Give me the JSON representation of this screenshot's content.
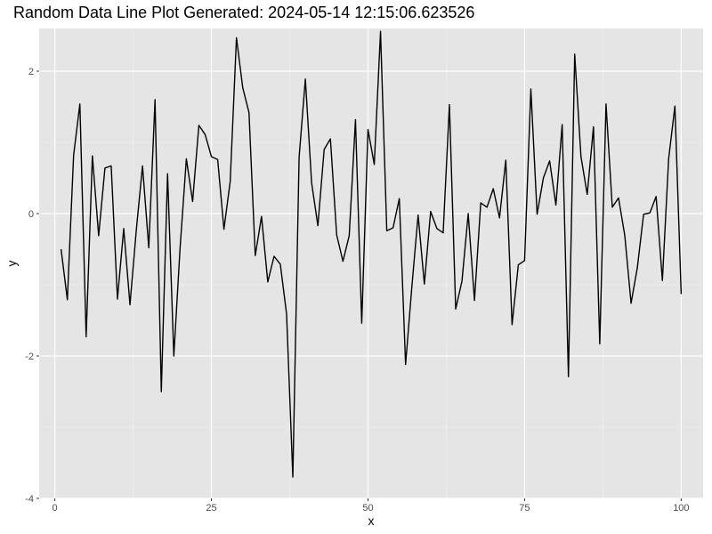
{
  "chart_data": {
    "type": "line",
    "title": "Random Data Line Plot Generated: 2024-05-14 12:15:06.623526",
    "xlabel": "x",
    "ylabel": "y",
    "xlim": [
      -2.5,
      103.5
    ],
    "ylim": [
      -4.0,
      2.6
    ],
    "x_ticks": [
      0,
      25,
      50,
      75,
      100
    ],
    "y_ticks": [
      -4,
      -2,
      0,
      2
    ],
    "x_tick_labels": [
      "0",
      "25",
      "50",
      "75",
      "100"
    ],
    "y_tick_labels": [
      "-4",
      "-2",
      "0",
      "2"
    ],
    "grid": true,
    "legend": "none",
    "colors": {
      "panel_background": "#e5e5e5",
      "grid_major": "#ffffff",
      "grid_minor": "#f2f2f2",
      "line": "#000000",
      "tick": "#333333"
    },
    "series": [
      {
        "x": [
          1,
          2,
          3,
          4,
          5,
          6,
          7,
          8,
          9,
          10,
          11,
          12,
          13,
          14,
          15,
          16,
          17,
          18,
          19,
          20,
          21,
          22,
          23,
          24,
          25,
          26,
          27,
          28,
          29,
          30,
          31,
          32,
          33,
          34,
          35,
          36,
          37,
          38,
          39,
          40,
          41,
          42,
          43,
          44,
          45,
          46,
          47,
          48,
          49,
          50,
          51,
          52,
          53,
          54,
          55,
          56,
          57,
          58,
          59,
          60,
          61,
          62,
          63,
          64,
          65,
          66,
          67,
          68,
          69,
          70,
          71,
          72,
          73,
          74,
          75,
          76,
          77,
          78,
          79,
          80,
          81,
          82,
          83,
          84,
          85,
          86,
          87,
          88,
          89,
          90,
          91,
          92,
          93,
          94,
          95,
          96,
          97,
          98,
          99,
          100
        ],
        "values": [
          -0.5,
          -1.21,
          0.82,
          1.54,
          -1.73,
          0.81,
          -0.31,
          0.64,
          0.67,
          -1.2,
          -0.21,
          -1.28,
          -0.24,
          0.67,
          -0.48,
          1.6,
          -2.5,
          0.56,
          -2.0,
          -0.48,
          0.77,
          0.17,
          1.24,
          1.11,
          0.8,
          0.76,
          -0.22,
          0.45,
          2.47,
          1.77,
          1.42,
          -0.59,
          -0.04,
          -0.96,
          -0.6,
          -0.71,
          -1.41,
          -3.7,
          0.79,
          1.89,
          0.43,
          -0.17,
          0.9,
          1.05,
          -0.3,
          -0.67,
          -0.31,
          1.32,
          -1.54,
          1.18,
          0.69,
          2.56,
          -0.24,
          -0.2,
          0.21,
          -2.12,
          -1.03,
          -0.02,
          -0.99,
          0.03,
          -0.21,
          -0.27,
          1.53,
          -1.34,
          -0.95,
          0.0,
          -1.22,
          0.15,
          0.09,
          0.35,
          -0.06,
          0.75,
          -1.56,
          -0.72,
          -0.66,
          1.75,
          -0.01,
          0.5,
          0.74,
          0.12,
          1.25,
          -2.29,
          2.24,
          0.8,
          0.27,
          1.22,
          -1.83,
          1.54,
          0.09,
          0.22,
          -0.31,
          -1.26,
          -0.76,
          -0.01,
          0.01,
          0.24,
          -0.94,
          0.77,
          1.51,
          -1.13
        ]
      }
    ]
  }
}
